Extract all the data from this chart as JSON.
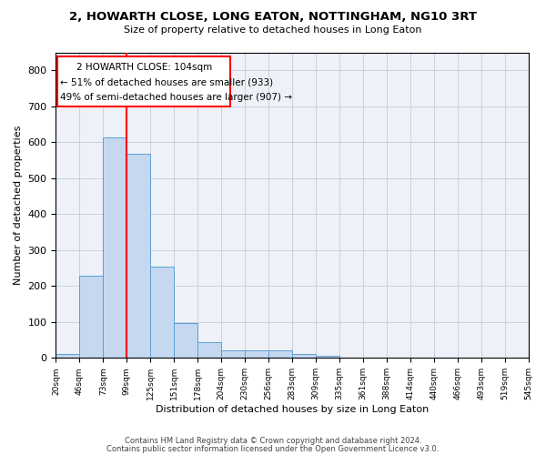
{
  "title": "2, HOWARTH CLOSE, LONG EATON, NOTTINGHAM, NG10 3RT",
  "subtitle": "Size of property relative to detached houses in Long Eaton",
  "xlabel": "Distribution of detached houses by size in Long Eaton",
  "ylabel": "Number of detached properties",
  "bar_values": [
    10,
    228,
    614,
    567,
    255,
    97,
    44,
    20,
    20,
    20,
    10,
    7,
    0,
    0,
    0,
    0,
    0,
    0,
    0,
    0
  ],
  "bin_labels": [
    "20sqm",
    "46sqm",
    "73sqm",
    "99sqm",
    "125sqm",
    "151sqm",
    "178sqm",
    "204sqm",
    "230sqm",
    "256sqm",
    "283sqm",
    "309sqm",
    "335sqm",
    "361sqm",
    "388sqm",
    "414sqm",
    "440sqm",
    "466sqm",
    "493sqm",
    "519sqm",
    "545sqm"
  ],
  "bar_color": "#c5d8f0",
  "bar_edge_color": "#5a9fd4",
  "grid_color": "#c8d0e0",
  "background_color": "#eef2f8",
  "property_label": "2 HOWARTH CLOSE: 104sqm",
  "pct_smaller": 51,
  "n_smaller": 933,
  "pct_larger": 49,
  "n_larger": 907,
  "vline_x_index": 3,
  "ylim": [
    0,
    850
  ],
  "yticks": [
    0,
    100,
    200,
    300,
    400,
    500,
    600,
    700,
    800
  ],
  "footnote1": "Contains HM Land Registry data © Crown copyright and database right 2024.",
  "footnote2": "Contains public sector information licensed under the Open Government Licence v3.0."
}
